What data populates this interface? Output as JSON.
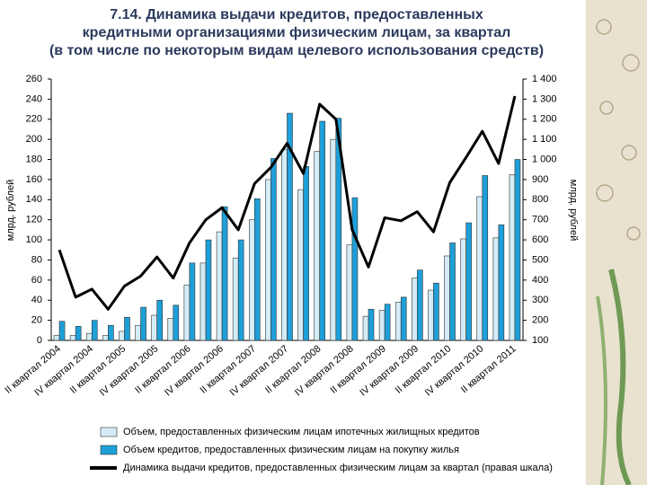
{
  "chart_data": {
    "type": "bar",
    "title": [
      "7.14. Динамика выдачи кредитов, предоставленных",
      "кредитными организациями физическим лицам, за квартал",
      "(в том числе по некоторым видам целевого использования средств)"
    ],
    "y_label": "млрд. рублей",
    "y2_label": "млрд. рублей",
    "categories": [
      "II квартал 2004",
      null,
      "IV квартал 2004",
      null,
      "II квартал 2005",
      null,
      "IV квартал 2005",
      null,
      "II квартал 2006",
      null,
      "IV квартал 2006",
      null,
      "II квартал 2007",
      null,
      "IV квартал 2007",
      null,
      "II квартал 2008",
      null,
      "IV квартал 2008",
      null,
      "II квартал 2009",
      null,
      "IV квартал 2009",
      null,
      "II квартал 2010",
      null,
      "IV квартал 2010",
      null,
      "II квартал 2011"
    ],
    "series": [
      {
        "name": "Объем, предоставленных физическим лицам ипотечных  жилищных кредитов",
        "type": "bar",
        "color": "#d4ecf6",
        "values": [
          5,
          5,
          7,
          5,
          9,
          15,
          25,
          22,
          55,
          77,
          108,
          82,
          120,
          160,
          190,
          150,
          188,
          200,
          95,
          24,
          30,
          38,
          62,
          50,
          84,
          101,
          143,
          102,
          165
        ]
      },
      {
        "name": "Объем кредитов, предоставленных физическим лицам  на покупку жилья",
        "type": "bar",
        "color": "#1e9fd8",
        "values": [
          19,
          14,
          20,
          15,
          23,
          33,
          40,
          35,
          77,
          100,
          133,
          100,
          141,
          181,
          226,
          173,
          218,
          221,
          142,
          31,
          36,
          43,
          70,
          57,
          97,
          117,
          164,
          115,
          180
        ]
      },
      {
        "name": "Динамика выдачи кредитов, предоставленных физическим лицам за квартал (правая шкала)",
        "type": "line",
        "axis": "y2",
        "color": "#000000",
        "values": [
          550,
          315,
          355,
          255,
          370,
          420,
          515,
          410,
          585,
          700,
          760,
          650,
          880,
          960,
          1080,
          930,
          1275,
          1200,
          650,
          465,
          710,
          695,
          740,
          640,
          885,
          1010,
          1140,
          980,
          1315
        ]
      }
    ],
    "ylim": [
      0,
      260
    ],
    "yticks": [
      0,
      20,
      40,
      60,
      80,
      100,
      120,
      140,
      160,
      180,
      200,
      220,
      240,
      260
    ],
    "y2lim": [
      100,
      1400
    ],
    "y2ticks": [
      100,
      200,
      300,
      400,
      500,
      600,
      700,
      800,
      900,
      {
        "value": 1000,
        "label": "1 000"
      },
      {
        "value": 1100,
        "label": "1 100"
      },
      {
        "value": 1200,
        "label": "1 200"
      },
      {
        "value": 1300,
        "label": "1 300"
      },
      {
        "value": 1400,
        "label": "1 400"
      }
    ],
    "grid": false,
    "legend": "bottom"
  }
}
